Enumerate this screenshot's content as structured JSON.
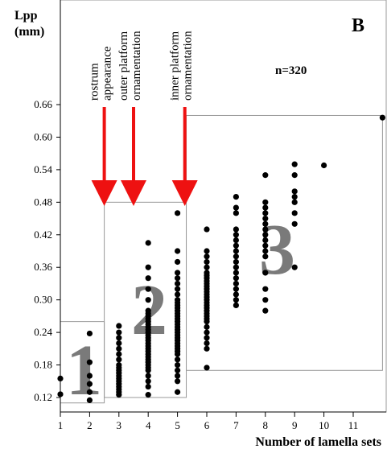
{
  "chart_data": {
    "type": "scatter",
    "panel_label": "B",
    "n_label": "n=320",
    "ylabel_lines": [
      "Lpp",
      "(mm)"
    ],
    "xlabel": "Number of lamella sets",
    "xlim": [
      1,
      12
    ],
    "ylim": [
      0.11,
      0.67
    ],
    "x_ticks": [
      1,
      2,
      3,
      4,
      5,
      6,
      7,
      8,
      9,
      10,
      11
    ],
    "y_ticks": [
      0.12,
      0.18,
      0.24,
      0.3,
      0.36,
      0.42,
      0.48,
      0.54,
      0.6,
      0.66
    ],
    "y_tick_labels": [
      "0.12",
      "0.18",
      "0.24",
      "0.30",
      "0.36",
      "0.42",
      "0.48",
      "0.54",
      "0.60",
      "0.66"
    ],
    "annotations": [
      {
        "text_lines": [
          "rostrum",
          "appearance"
        ],
        "x": 2.5
      },
      {
        "text_lines": [
          "outer platform",
          "ornamentation"
        ],
        "x": 3.5
      },
      {
        "text_lines": [
          "inner platform",
          "ornamentation"
        ],
        "x": 5.25
      }
    ],
    "groups": [
      {
        "label": "1",
        "x_range": [
          1,
          2.5
        ],
        "y_range": [
          0.11,
          0.26
        ]
      },
      {
        "label": "2",
        "x_range": [
          2.5,
          5.3
        ],
        "y_range": [
          0.12,
          0.48
        ]
      },
      {
        "label": "3",
        "x_range": [
          5.3,
          12
        ],
        "y_range": [
          0.17,
          0.64
        ]
      }
    ],
    "series": [
      {
        "x": 1,
        "y": [
          0.126,
          0.155
        ]
      },
      {
        "x": 2,
        "y": [
          0.115,
          0.13,
          0.145,
          0.16,
          0.185,
          0.238
        ]
      },
      {
        "x": 3,
        "y": [
          0.125,
          0.13,
          0.135,
          0.14,
          0.145,
          0.15,
          0.155,
          0.16,
          0.165,
          0.17,
          0.175,
          0.18,
          0.19,
          0.2,
          0.21,
          0.22,
          0.23,
          0.24,
          0.252
        ]
      },
      {
        "x": 4,
        "y": [
          0.125,
          0.14,
          0.15,
          0.16,
          0.17,
          0.175,
          0.18,
          0.185,
          0.19,
          0.195,
          0.2,
          0.205,
          0.21,
          0.215,
          0.22,
          0.225,
          0.23,
          0.235,
          0.24,
          0.245,
          0.25,
          0.255,
          0.26,
          0.265,
          0.27,
          0.275,
          0.28,
          0.3,
          0.32,
          0.34,
          0.36,
          0.405
        ]
      },
      {
        "x": 5,
        "y": [
          0.13,
          0.15,
          0.16,
          0.17,
          0.18,
          0.19,
          0.2,
          0.205,
          0.21,
          0.215,
          0.22,
          0.225,
          0.23,
          0.235,
          0.24,
          0.245,
          0.25,
          0.255,
          0.26,
          0.265,
          0.27,
          0.275,
          0.28,
          0.285,
          0.29,
          0.295,
          0.3,
          0.31,
          0.32,
          0.33,
          0.34,
          0.35,
          0.37,
          0.39,
          0.46
        ]
      },
      {
        "x": 6,
        "y": [
          0.175,
          0.21,
          0.22,
          0.23,
          0.24,
          0.25,
          0.26,
          0.265,
          0.27,
          0.275,
          0.28,
          0.285,
          0.29,
          0.295,
          0.3,
          0.305,
          0.31,
          0.315,
          0.32,
          0.325,
          0.33,
          0.335,
          0.34,
          0.345,
          0.35,
          0.36,
          0.37,
          0.38,
          0.39,
          0.43
        ]
      },
      {
        "x": 7,
        "y": [
          0.29,
          0.3,
          0.31,
          0.32,
          0.33,
          0.34,
          0.35,
          0.36,
          0.37,
          0.38,
          0.39,
          0.4,
          0.41,
          0.42,
          0.43,
          0.46,
          0.47,
          0.49
        ]
      },
      {
        "x": 8,
        "y": [
          0.28,
          0.3,
          0.32,
          0.35,
          0.38,
          0.39,
          0.4,
          0.41,
          0.42,
          0.43,
          0.44,
          0.45,
          0.46,
          0.47,
          0.48,
          0.53
        ]
      },
      {
        "x": 9,
        "y": [
          0.36,
          0.44,
          0.46,
          0.48,
          0.49,
          0.5,
          0.53,
          0.55
        ]
      },
      {
        "x": 10,
        "y": [
          0.548
        ]
      },
      {
        "x": 12,
        "y": [
          0.636
        ]
      }
    ]
  }
}
